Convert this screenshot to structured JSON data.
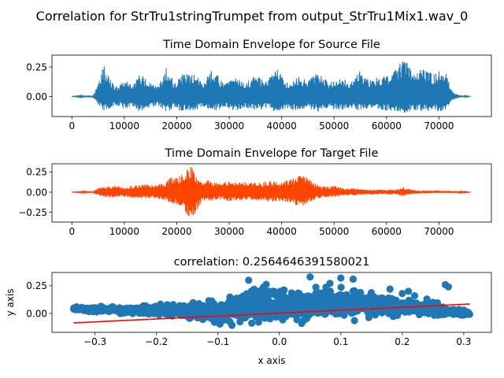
{
  "suptitle": "Correlation for StrTru1stringTrumpet from output_StrTru1Mix1.wav_0",
  "chart_data": [
    {
      "type": "line",
      "title": "Time Domain Envelope for Source File",
      "xlabel": "",
      "ylabel": "",
      "xlim": [
        -3800,
        80000
      ],
      "ylim": [
        -0.17,
        0.35
      ],
      "x_ticks": [
        0,
        10000,
        20000,
        30000,
        40000,
        50000,
        60000,
        70000
      ],
      "y_ticks": [
        0.0,
        0.25
      ],
      "x_tick_labels": [
        "0",
        "10000",
        "20000",
        "30000",
        "40000",
        "50000",
        "60000",
        "70000"
      ],
      "y_tick_labels": [
        "0.00",
        "0.25"
      ],
      "color": "#1f77b4",
      "series": [
        {
          "x": [
            0,
            4000,
            4500,
            5000,
            6000,
            8000,
            9000,
            10000,
            11500,
            13000,
            15000,
            16500,
            18000,
            19500,
            21000,
            23000,
            25000,
            27000,
            29000,
            31000,
            33000,
            35000,
            37000,
            39000,
            41000,
            43000,
            45000,
            47000,
            49000,
            51000,
            53000,
            55000,
            57000,
            59000,
            61000,
            62500,
            63500,
            65000,
            67000,
            69000,
            70500,
            71500,
            72500,
            74000,
            76000
          ],
          "upper": [
            0,
            0.01,
            0.05,
            0.1,
            0.27,
            0.1,
            0.08,
            0.15,
            0.09,
            0.2,
            0.11,
            0.08,
            0.26,
            0.12,
            0.19,
            0.2,
            0.13,
            0.24,
            0.1,
            0.17,
            0.11,
            0.18,
            0.13,
            0.24,
            0.12,
            0.17,
            0.14,
            0.21,
            0.12,
            0.19,
            0.13,
            0.22,
            0.14,
            0.18,
            0.19,
            0.28,
            0.32,
            0.2,
            0.24,
            0.19,
            0.25,
            0.19,
            0.05,
            0.01,
            0
          ],
          "lower": [
            0,
            -0.01,
            -0.04,
            -0.07,
            -0.12,
            -0.09,
            -0.08,
            -0.11,
            -0.09,
            -0.13,
            -0.1,
            -0.08,
            -0.14,
            -0.1,
            -0.13,
            -0.12,
            -0.1,
            -0.13,
            -0.09,
            -0.12,
            -0.1,
            -0.12,
            -0.1,
            -0.13,
            -0.1,
            -0.12,
            -0.1,
            -0.13,
            -0.1,
            -0.12,
            -0.1,
            -0.12,
            -0.1,
            -0.12,
            -0.12,
            -0.13,
            -0.14,
            -0.12,
            -0.13,
            -0.12,
            -0.13,
            -0.11,
            -0.03,
            -0.01,
            0
          ]
        }
      ]
    },
    {
      "type": "line",
      "title": "Time Domain Envelope for Target File",
      "xlabel": "",
      "ylabel": "",
      "xlim": [
        -3800,
        80000
      ],
      "ylim": [
        -0.37,
        0.35
      ],
      "x_ticks": [
        0,
        10000,
        20000,
        30000,
        40000,
        50000,
        60000,
        70000
      ],
      "y_ticks": [
        -0.25,
        0.0,
        0.25
      ],
      "x_tick_labels": [
        "0",
        "10000",
        "20000",
        "30000",
        "40000",
        "50000",
        "60000",
        "70000"
      ],
      "y_tick_labels": [
        "−0.25",
        "0.00",
        "0.25"
      ],
      "color": "#ff4500",
      "series": [
        {
          "x": [
            0,
            4000,
            5000,
            6000,
            8000,
            10000,
            12000,
            14000,
            16000,
            18000,
            19000,
            20000,
            21000,
            22000,
            23000,
            24000,
            25000,
            26000,
            28000,
            30000,
            32000,
            34000,
            36000,
            38000,
            40000,
            42000,
            43500,
            44500,
            46000,
            48000,
            50000,
            52000,
            54000,
            56000,
            58000,
            60000,
            62000,
            63000,
            64000,
            66000,
            70000,
            74000,
            76000
          ],
          "upper": [
            0,
            0.01,
            0.05,
            0.07,
            0.08,
            0.07,
            0.08,
            0.1,
            0.09,
            0.13,
            0.2,
            0.18,
            0.22,
            0.3,
            0.32,
            0.16,
            0.12,
            0.15,
            0.11,
            0.14,
            0.12,
            0.13,
            0.12,
            0.14,
            0.13,
            0.16,
            0.26,
            0.2,
            0.12,
            0.07,
            0.08,
            0.05,
            0.05,
            0.03,
            0.03,
            0.03,
            0.03,
            0.07,
            0.04,
            0.02,
            0.02,
            0.01,
            0
          ],
          "lower": [
            0,
            -0.01,
            -0.04,
            -0.06,
            -0.07,
            -0.06,
            -0.07,
            -0.08,
            -0.08,
            -0.11,
            -0.14,
            -0.15,
            -0.18,
            -0.28,
            -0.35,
            -0.2,
            -0.1,
            -0.12,
            -0.09,
            -0.11,
            -0.1,
            -0.11,
            -0.1,
            -0.12,
            -0.12,
            -0.13,
            -0.21,
            -0.15,
            -0.1,
            -0.06,
            -0.06,
            -0.04,
            -0.04,
            -0.03,
            -0.03,
            -0.03,
            -0.03,
            -0.06,
            -0.03,
            -0.02,
            -0.01,
            -0.01,
            0
          ]
        }
      ]
    },
    {
      "type": "scatter",
      "title": "correlation: 0.2564646391580021",
      "xlabel": "x axis",
      "ylabel": "y axis",
      "xlim": [
        -0.37,
        0.345
      ],
      "ylim": [
        -0.17,
        0.37
      ],
      "x_ticks": [
        -0.3,
        -0.2,
        -0.1,
        0.0,
        0.1,
        0.2,
        0.3
      ],
      "y_ticks": [
        0.0,
        0.25
      ],
      "x_tick_labels": [
        "−0.3",
        "−0.2",
        "−0.1",
        "0.0",
        "0.1",
        "0.2",
        "0.3"
      ],
      "y_tick_labels": [
        "0.00",
        "0.25"
      ],
      "point_color": "#1f77b4",
      "fit_line": {
        "x": [
          -0.335,
          0.31
        ],
        "y": [
          -0.085,
          0.085
        ],
        "color": "#ff0000"
      },
      "cloud": {
        "x": [
          -0.335,
          -0.3,
          -0.25,
          -0.2,
          -0.15,
          -0.1,
          -0.05,
          0.0,
          0.05,
          0.1,
          0.15,
          0.2,
          0.25,
          0.3,
          0.31
        ],
        "upper": [
          0.065,
          0.065,
          0.07,
          0.09,
          0.12,
          0.15,
          0.28,
          0.32,
          0.3,
          0.3,
          0.25,
          0.17,
          0.12,
          0.03,
          0.02
        ],
        "lower": [
          0.025,
          0.01,
          -0.01,
          -0.03,
          -0.07,
          -0.12,
          -0.14,
          -0.15,
          -0.13,
          -0.11,
          -0.08,
          -0.05,
          -0.03,
          -0.03,
          -0.02
        ]
      },
      "outliers": [
        {
          "x": 0.27,
          "y": 0.26
        },
        {
          "x": 0.275,
          "y": 0.24
        },
        {
          "x": 0.2,
          "y": 0.18
        },
        {
          "x": 0.21,
          "y": 0.2
        },
        {
          "x": 0.22,
          "y": 0.16
        },
        {
          "x": 0.24,
          "y": 0.13
        },
        {
          "x": 0.18,
          "y": 0.22
        },
        {
          "x": 0.1,
          "y": 0.32
        },
        {
          "x": 0.12,
          "y": 0.31
        },
        {
          "x": 0.05,
          "y": 0.33
        },
        {
          "x": -0.05,
          "y": 0.3
        },
        {
          "x": 0.25,
          "y": 0.1
        },
        {
          "x": 0.3,
          "y": 0.03
        },
        {
          "x": -0.29,
          "y": 0.065
        },
        {
          "x": -0.33,
          "y": 0.06
        }
      ]
    }
  ]
}
